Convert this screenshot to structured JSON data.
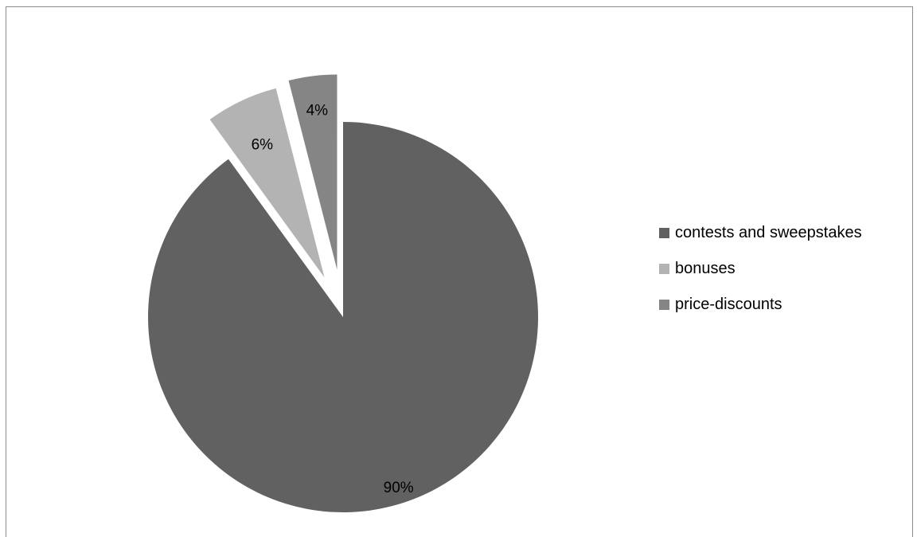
{
  "chart_data": {
    "type": "pie",
    "title": "",
    "exploded": true,
    "legend_position": "right",
    "categories": [
      "contests and sweepstakes",
      "bonuses",
      "price-discounts"
    ],
    "values": [
      90,
      6,
      4
    ],
    "data_labels": [
      "90%",
      "6%",
      "4%"
    ],
    "colors": [
      "#616161",
      "#b3b3b3",
      "#858585"
    ]
  },
  "legend": {
    "items": [
      {
        "label": "contests and sweepstakes",
        "color": "#616161"
      },
      {
        "label": "bonuses",
        "color": "#b3b3b3"
      },
      {
        "label": "price-discounts",
        "color": "#858585"
      }
    ]
  }
}
